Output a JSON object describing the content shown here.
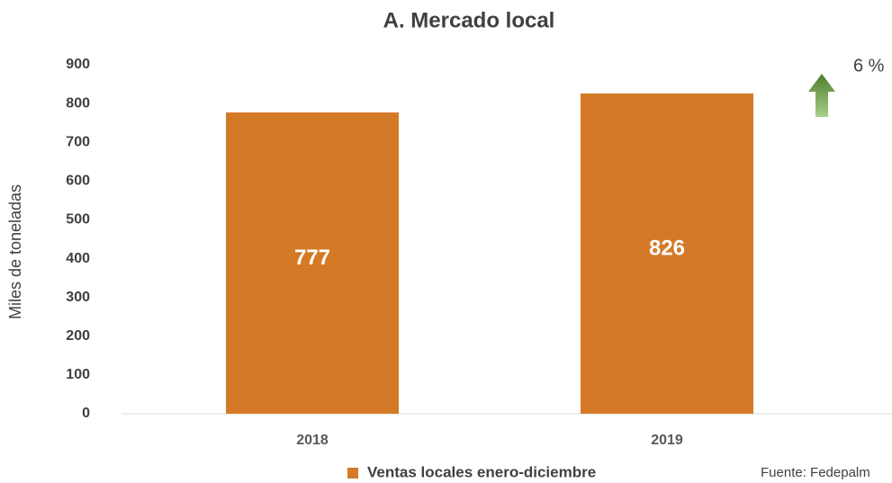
{
  "chart_data": {
    "type": "bar",
    "title": "A. Mercado local",
    "ylabel": "Miles de toneladas",
    "categories": [
      "2018",
      "2019"
    ],
    "series": [
      {
        "name": "Ventas locales enero-diciembre",
        "color": "#d47a27",
        "values": [
          777,
          826
        ]
      }
    ],
    "ylim": [
      0,
      900
    ],
    "yticks": [
      0,
      100,
      200,
      300,
      400,
      500,
      600,
      700,
      800,
      900
    ],
    "annotation": "6 %",
    "source": "Fuente: Fedepalm"
  }
}
